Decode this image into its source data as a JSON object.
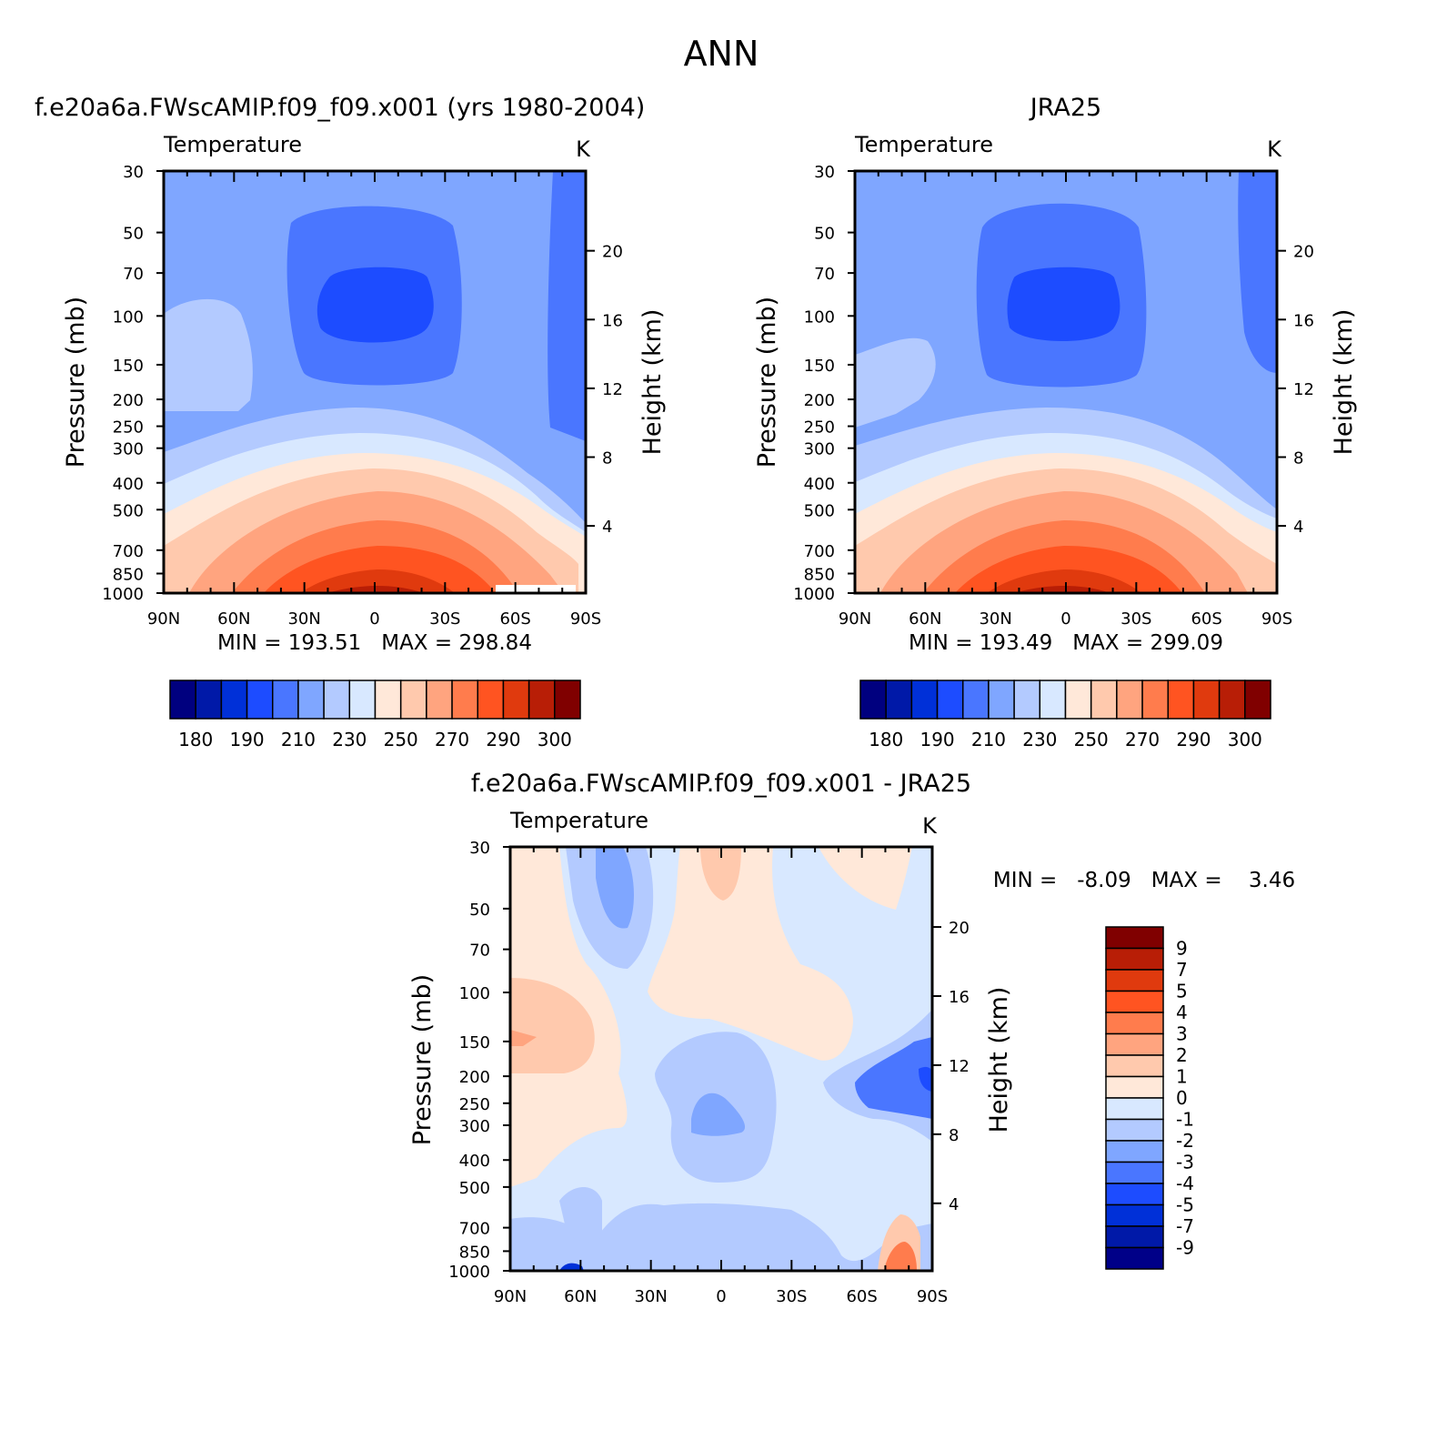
{
  "figure": {
    "title": "ANN"
  },
  "colors": {
    "model_palette": [
      "#00007f",
      "#0019a8",
      "#0030d8",
      "#1d4cff",
      "#4a76ff",
      "#7fa6ff",
      "#b3caff",
      "#d8e8ff",
      "#ffe8d9",
      "#ffc9ad",
      "#ffa47f",
      "#ff7c4d",
      "#ff5421",
      "#e03a0e",
      "#b81e06",
      "#800000"
    ],
    "diff_palette": [
      "#000088",
      "#0019a8",
      "#0030d8",
      "#1d4cff",
      "#4a76ff",
      "#7fa6ff",
      "#b3caff",
      "#d8e8ff",
      "#ffe8d9",
      "#ffc9ad",
      "#ffa47f",
      "#ff7c4d",
      "#ff5421",
      "#e03a0e",
      "#b81e06",
      "#800000"
    ]
  },
  "chart_data": [
    {
      "id": "model",
      "type": "heatmap",
      "title": "f.e20a6a.FWscAMIP.f09_f09.x001 (yrs 1980-2004)",
      "subtitle_left": "Temperature",
      "subtitle_right": "K",
      "ylabel": "Pressure (mb)",
      "ylabel_right": "Height (km)",
      "x_ticks": [
        "90N",
        "60N",
        "30N",
        "0",
        "30S",
        "60S",
        "90S"
      ],
      "x_values": [
        90,
        60,
        30,
        0,
        -30,
        -60,
        -90
      ],
      "y_ticks": [
        "30",
        "50",
        "70",
        "100",
        "150",
        "200",
        "250",
        "300",
        "400",
        "500",
        "700",
        "850",
        "1000"
      ],
      "y_values": [
        30,
        50,
        70,
        100,
        150,
        200,
        250,
        300,
        400,
        500,
        700,
        850,
        1000
      ],
      "ylim": [
        1000,
        30
      ],
      "height_ticks": [
        "20",
        "16",
        "12",
        "8",
        "4"
      ],
      "stats": {
        "min_label": "MIN",
        "min": "193.51",
        "max_label": "MAX",
        "max": "298.84"
      },
      "colorbar_labels": [
        "180",
        "190",
        "210",
        "230",
        "250",
        "270",
        "290",
        "300"
      ],
      "colorbar_levels": [
        180,
        185,
        190,
        200,
        210,
        220,
        230,
        240,
        250,
        260,
        270,
        280,
        290,
        295,
        300
      ]
    },
    {
      "id": "obs",
      "type": "heatmap",
      "title": "JRA25",
      "subtitle_left": "Temperature",
      "subtitle_right": "K",
      "ylabel": "Pressure (mb)",
      "ylabel_right": "Height (km)",
      "x_ticks": [
        "90N",
        "60N",
        "30N",
        "0",
        "30S",
        "60S",
        "90S"
      ],
      "x_values": [
        90,
        60,
        30,
        0,
        -30,
        -60,
        -90
      ],
      "y_ticks": [
        "30",
        "50",
        "70",
        "100",
        "150",
        "200",
        "250",
        "300",
        "400",
        "500",
        "700",
        "850",
        "1000"
      ],
      "y_values": [
        30,
        50,
        70,
        100,
        150,
        200,
        250,
        300,
        400,
        500,
        700,
        850,
        1000
      ],
      "ylim": [
        1000,
        30
      ],
      "height_ticks": [
        "20",
        "16",
        "12",
        "8",
        "4"
      ],
      "stats": {
        "min_label": "MIN",
        "min": "193.49",
        "max_label": "MAX",
        "max": "299.09"
      },
      "colorbar_labels": [
        "180",
        "190",
        "210",
        "230",
        "250",
        "270",
        "290",
        "300"
      ],
      "colorbar_levels": [
        180,
        185,
        190,
        200,
        210,
        220,
        230,
        240,
        250,
        260,
        270,
        280,
        290,
        295,
        300
      ]
    },
    {
      "id": "diff",
      "type": "heatmap",
      "title": "f.e20a6a.FWscAMIP.f09_f09.x001 - JRA25",
      "subtitle_left": "Temperature",
      "subtitle_right": "K",
      "ylabel": "Pressure (mb)",
      "ylabel_right": "Height (km)",
      "x_ticks": [
        "90N",
        "60N",
        "30N",
        "0",
        "30S",
        "60S",
        "90S"
      ],
      "x_values": [
        90,
        60,
        30,
        0,
        -30,
        -60,
        -90
      ],
      "y_ticks": [
        "30",
        "50",
        "70",
        "100",
        "150",
        "200",
        "250",
        "300",
        "400",
        "500",
        "700",
        "850",
        "1000"
      ],
      "y_values": [
        30,
        50,
        70,
        100,
        150,
        200,
        250,
        300,
        400,
        500,
        700,
        850,
        1000
      ],
      "ylim": [
        1000,
        30
      ],
      "height_ticks": [
        "20",
        "16",
        "12",
        "8",
        "4"
      ],
      "stats": {
        "min_label": "MIN =",
        "min": "-8.09",
        "max_label": "MAX =",
        "max": "3.46"
      },
      "colorbar_labels": [
        "9",
        "7",
        "5",
        "4",
        "3",
        "2",
        "1",
        "0",
        "-1",
        "-2",
        "-3",
        "-4",
        "-5",
        "-7",
        "-9"
      ],
      "colorbar_levels": [
        -9,
        -7,
        -5,
        -4,
        -3,
        -2,
        -1,
        0,
        1,
        2,
        3,
        4,
        5,
        7,
        9
      ]
    }
  ]
}
